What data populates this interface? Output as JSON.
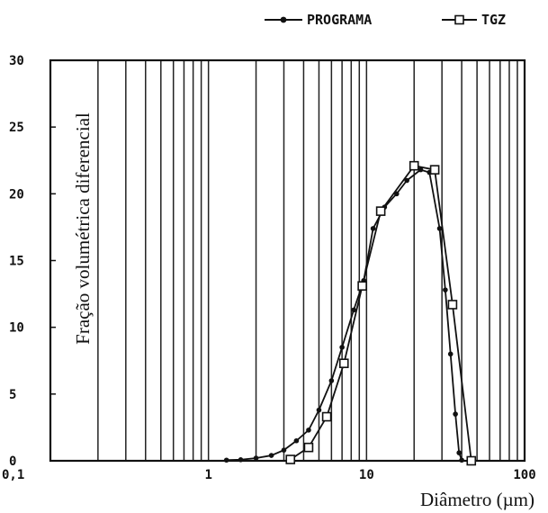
{
  "chart_data": {
    "type": "line",
    "xlabel": "Diâmetro (µm)",
    "ylabel": "Fração volumétrica diferencial",
    "x_scale": "log",
    "xlim": [
      0.1,
      100
    ],
    "ylim": [
      0,
      30
    ],
    "x_tick_labels": [
      "0,1",
      "1",
      "10",
      "100"
    ],
    "y_tick_labels": [
      "0",
      "5",
      "10",
      "15",
      "20",
      "25",
      "30"
    ],
    "grid": "vertical",
    "legend_position": "top-right",
    "colors": {
      "line": "#111111",
      "grid": "#222222",
      "background": "#ffffff"
    },
    "series": [
      {
        "name": "PROGRAMA",
        "marker": "filled-dot",
        "points": [
          [
            1.3,
            0.05
          ],
          [
            1.6,
            0.08
          ],
          [
            2.0,
            0.2
          ],
          [
            2.5,
            0.4
          ],
          [
            3.0,
            0.8
          ],
          [
            3.6,
            1.5
          ],
          [
            4.3,
            2.3
          ],
          [
            5.0,
            3.8
          ],
          [
            6.0,
            6.0
          ],
          [
            7.0,
            8.5
          ],
          [
            8.3,
            11.3
          ],
          [
            9.6,
            13.5
          ],
          [
            11.0,
            17.4
          ],
          [
            13.0,
            19.0
          ],
          [
            15.5,
            20.0
          ],
          [
            18.0,
            21.0
          ],
          [
            22.0,
            21.8
          ],
          [
            25.0,
            21.6
          ],
          [
            29.0,
            17.4
          ],
          [
            31.5,
            12.8
          ],
          [
            34.0,
            8.0
          ],
          [
            36.5,
            3.5
          ],
          [
            38.5,
            0.6
          ],
          [
            40.0,
            0.05
          ]
        ]
      },
      {
        "name": "TGZ",
        "marker": "open-square",
        "points": [
          [
            3.3,
            0.1
          ],
          [
            4.3,
            1.0
          ],
          [
            5.6,
            3.3
          ],
          [
            7.2,
            7.3
          ],
          [
            9.4,
            13.1
          ],
          [
            12.3,
            18.7
          ],
          [
            20.0,
            22.1
          ],
          [
            27.0,
            21.8
          ],
          [
            35.0,
            11.7
          ],
          [
            46.0,
            0.0
          ]
        ]
      }
    ]
  }
}
